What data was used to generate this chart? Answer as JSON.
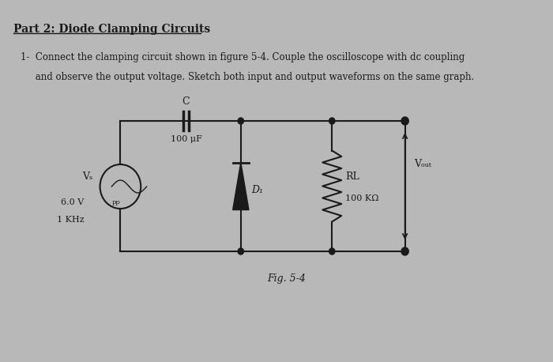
{
  "title": "Part 2: Diode Clamping Circuits",
  "instruction_line1": "1-  Connect the clamping circuit shown in figure 5-4. Couple the oscilloscope with dc coupling",
  "instruction_line2": "     and observe the output voltage. Sketch both input and output waveforms on the same graph.",
  "fig_label": "Fig. 5-4",
  "cap_label": "C",
  "cap_value": "100 μF",
  "diode_label": "D₁",
  "rl_label": "RL",
  "rl_value": "100 KΩ",
  "vout_label": "Vₒᵤₜ",
  "vs_label": "Vₛ",
  "vs_line1": "6.0 V",
  "vs_line1_sub": "pp",
  "vs_line2": "1 KHz",
  "bg_color": "#b8b8b8",
  "text_color": "#1a1a1a",
  "line_color": "#1a1a1a"
}
